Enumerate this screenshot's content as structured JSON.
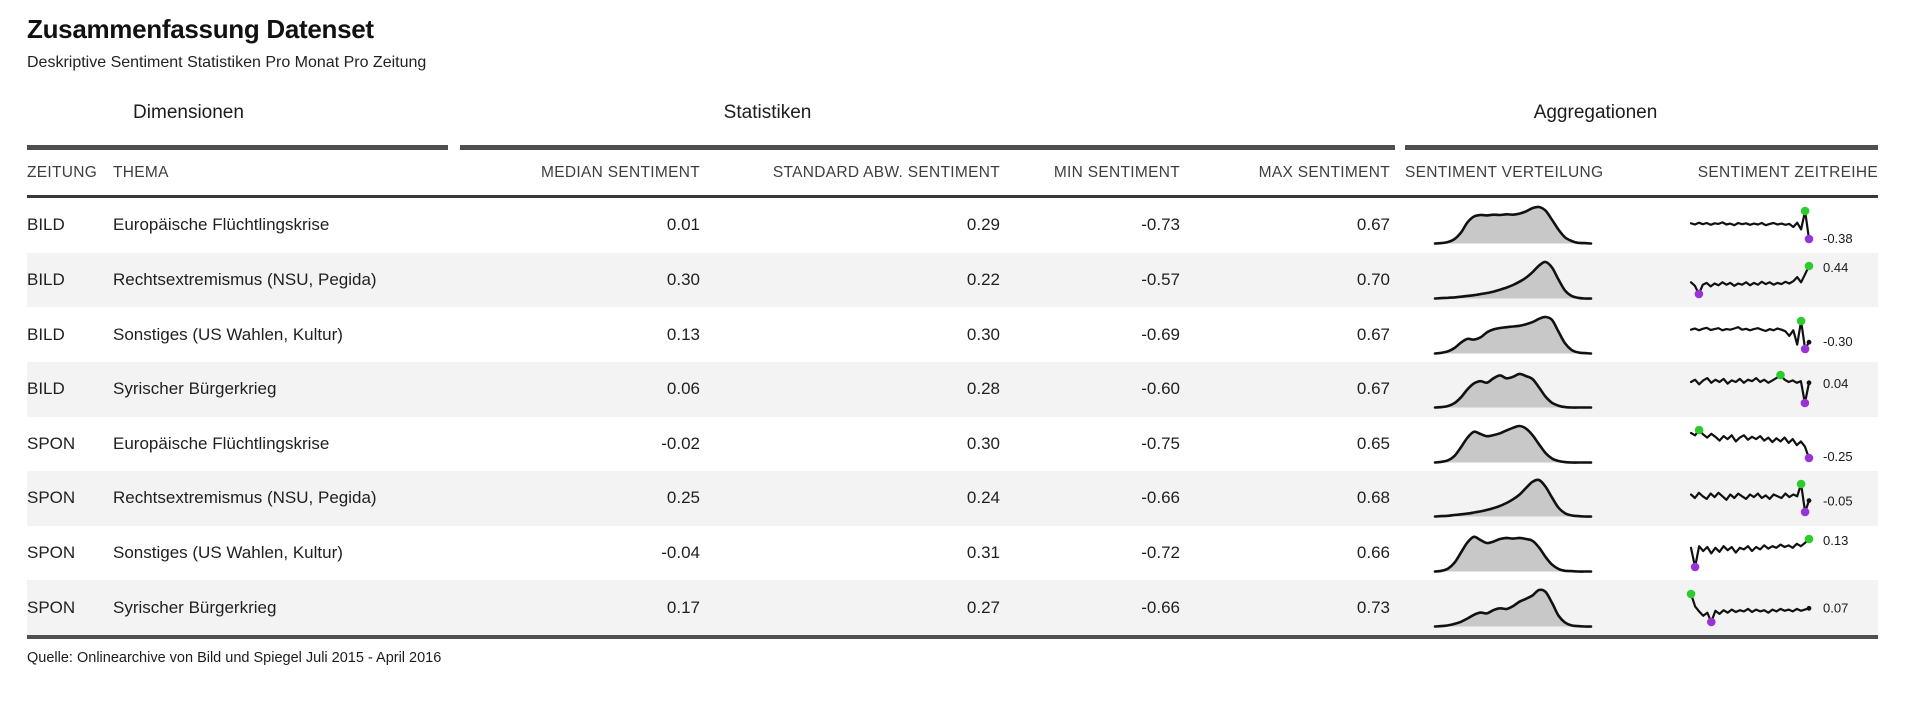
{
  "title": "Zusammenfassung Datenset",
  "subtitle": "Deskriptive Sentiment Statistiken Pro Monat Pro Zeitung",
  "source": "Quelle: Onlinearchive von Bild und Spiegel Juli 2015 - April 2016",
  "colors": {
    "stripe": "#f3f3f3",
    "heavy_rule": "#4f4f4f",
    "header_rule": "#383838",
    "density_fill": "#c8c8c8",
    "line": "#111111",
    "dot_max": "#2bcc2b",
    "dot_min": "#9a33d6"
  },
  "chart_data": {
    "type": "table",
    "column_groups": [
      "Dimensionen",
      "Statistiken",
      "Aggregationen"
    ],
    "columns": {
      "zeitung": "ZEITUNG",
      "thema": "THEMA",
      "median": "MEDIAN SENTIMENT",
      "std": "STANDARD ABW. SENTIMENT",
      "min": "MIN SENTIMENT",
      "max": "MAX SENTIMENT",
      "verteilung": "SENTIMENT VERTEILUNG",
      "zeitreihe": "SENTIMENT ZEITREIHE"
    },
    "rows": [
      {
        "zeitung": "BILD",
        "thema": "Europäische Flüchtlingskrise",
        "median_sentiment": "0.01",
        "std_abw_sentiment": "0.29",
        "min_sentiment": "-0.73",
        "max_sentiment": "0.67",
        "verteilung_density": [
          0,
          0.01,
          0.04,
          0.12,
          0.3,
          0.58,
          0.74,
          0.78,
          0.77,
          0.79,
          0.78,
          0.8,
          0.79,
          0.82,
          0.88,
          0.97,
          1.0,
          0.9,
          0.65,
          0.38,
          0.17,
          0.07,
          0.02,
          0.01,
          0
        ],
        "zeitreihe": [
          0.14,
          0.1,
          0.16,
          0.11,
          0.15,
          0.09,
          0.14,
          0.12,
          0.17,
          0.1,
          0.13,
          0.08,
          0.15,
          0.11,
          0.14,
          0.09,
          0.13,
          0.1,
          0.15,
          0.08,
          0.12,
          0.15,
          0.1,
          0.13,
          0.09,
          0.12,
          0.02,
          0.16,
          -0.06,
          0.55,
          -0.38
        ],
        "zeitreihe_last_label": "-0.38"
      },
      {
        "zeitung": "BILD",
        "thema": "Rechtsextremismus (NSU, Pegida)",
        "median_sentiment": "0.30",
        "std_abw_sentiment": "0.22",
        "min_sentiment": "-0.57",
        "max_sentiment": "0.70",
        "verteilung_density": [
          0,
          0.01,
          0.02,
          0.03,
          0.05,
          0.07,
          0.09,
          0.12,
          0.15,
          0.19,
          0.24,
          0.3,
          0.37,
          0.46,
          0.57,
          0.72,
          0.9,
          1.0,
          0.85,
          0.52,
          0.22,
          0.07,
          0.02,
          0,
          0
        ],
        "zeitreihe": [
          0.16,
          0.1,
          -0.04,
          0.12,
          0.15,
          0.09,
          0.14,
          0.11,
          0.16,
          0.12,
          0.15,
          0.1,
          0.14,
          0.12,
          0.16,
          0.11,
          0.15,
          0.12,
          0.17,
          0.13,
          0.16,
          0.12,
          0.15,
          0.13,
          0.17,
          0.14,
          0.18,
          0.25,
          0.16,
          0.3,
          0.44
        ],
        "zeitreihe_last_label": "0.44"
      },
      {
        "zeitung": "BILD",
        "thema": "Sonstiges (US Wahlen, Kultur)",
        "median_sentiment": "0.13",
        "std_abw_sentiment": "0.30",
        "min_sentiment": "-0.69",
        "max_sentiment": "0.67",
        "verteilung_density": [
          0,
          0.02,
          0.06,
          0.15,
          0.3,
          0.4,
          0.38,
          0.44,
          0.58,
          0.66,
          0.7,
          0.72,
          0.74,
          0.76,
          0.8,
          0.86,
          0.95,
          1.0,
          0.92,
          0.6,
          0.28,
          0.1,
          0.03,
          0.01,
          0
        ],
        "zeitreihe": [
          0.1,
          0.14,
          0.08,
          0.13,
          0.16,
          0.09,
          0.12,
          0.15,
          0.08,
          0.12,
          0.1,
          0.14,
          0.18,
          0.1,
          0.13,
          0.08,
          0.12,
          0.15,
          0.1,
          0.06,
          0.12,
          0.08,
          0.14,
          0.1,
          0.05,
          -0.1,
          0.08,
          -0.38,
          0.38,
          -0.52,
          -0.3
        ],
        "zeitreihe_last_label": "-0.30"
      },
      {
        "zeitung": "BILD",
        "thema": "Syrischer Bürgerkrieg",
        "median_sentiment": "0.06",
        "std_abw_sentiment": "0.28",
        "min_sentiment": "-0.60",
        "max_sentiment": "0.67",
        "verteilung_density": [
          0,
          0.01,
          0.04,
          0.12,
          0.28,
          0.5,
          0.66,
          0.72,
          0.68,
          0.8,
          0.88,
          0.8,
          0.84,
          0.92,
          0.86,
          0.78,
          0.55,
          0.3,
          0.13,
          0.05,
          0.01,
          0,
          0,
          0,
          0
        ],
        "zeitreihe": [
          0.05,
          0.08,
          0.02,
          0.07,
          0.1,
          0.04,
          0.08,
          0.05,
          0.09,
          0.03,
          0.07,
          0.05,
          0.09,
          0.04,
          0.08,
          0.06,
          0.1,
          0.05,
          0.08,
          0.04,
          0.07,
          0.1,
          0.14,
          0.08,
          0.05,
          0.07,
          0.04,
          0.06,
          -0.22,
          0.04
        ],
        "zeitreihe_last_label": "0.04"
      },
      {
        "zeitung": "SPON",
        "thema": "Europäische Flüchtlingskrise",
        "median_sentiment": "-0.02",
        "std_abw_sentiment": "0.30",
        "min_sentiment": "-0.75",
        "max_sentiment": "0.65",
        "verteilung_density": [
          0,
          0.02,
          0.06,
          0.18,
          0.42,
          0.68,
          0.84,
          0.78,
          0.72,
          0.75,
          0.8,
          0.88,
          0.95,
          1.0,
          0.93,
          0.75,
          0.5,
          0.26,
          0.11,
          0.04,
          0.01,
          0,
          0,
          0,
          0
        ],
        "zeitreihe": [
          0.08,
          0.05,
          0.12,
          0.06,
          0.02,
          0.07,
          0.03,
          -0.02,
          0.04,
          0.0,
          0.05,
          -0.03,
          0.02,
          0.05,
          -0.01,
          0.03,
          0.0,
          0.04,
          -0.02,
          0.02,
          -0.04,
          0.01,
          -0.03,
          0.02,
          -0.05,
          0.0,
          -0.08,
          -0.03,
          -0.1,
          -0.25
        ],
        "zeitreihe_last_label": "-0.25"
      },
      {
        "zeitung": "SPON",
        "thema": "Rechtsextremismus (NSU, Pegida)",
        "median_sentiment": "0.25",
        "std_abw_sentiment": "0.24",
        "min_sentiment": "-0.66",
        "max_sentiment": "0.68",
        "verteilung_density": [
          0,
          0.01,
          0.02,
          0.04,
          0.06,
          0.08,
          0.11,
          0.14,
          0.18,
          0.23,
          0.29,
          0.37,
          0.47,
          0.6,
          0.78,
          0.95,
          1.0,
          0.82,
          0.52,
          0.24,
          0.09,
          0.03,
          0.01,
          0,
          0
        ],
        "zeitreihe": [
          0.02,
          -0.02,
          0.04,
          0.0,
          -0.03,
          0.03,
          -0.01,
          0.04,
          0.0,
          -0.04,
          0.02,
          -0.02,
          0.03,
          0.0,
          -0.03,
          0.02,
          -0.01,
          0.03,
          -0.02,
          0.01,
          -0.03,
          0.02,
          0.0,
          -0.02,
          0.03,
          -0.01,
          0.02,
          0.0,
          0.14,
          -0.18,
          -0.05
        ],
        "zeitreihe_last_label": "-0.05"
      },
      {
        "zeitung": "SPON",
        "thema": "Sonstiges (US Wahlen, Kultur)",
        "median_sentiment": "-0.04",
        "std_abw_sentiment": "0.31",
        "min_sentiment": "-0.72",
        "max_sentiment": "0.66",
        "verteilung_density": [
          0,
          0.02,
          0.08,
          0.24,
          0.52,
          0.8,
          0.95,
          0.86,
          0.78,
          0.82,
          0.89,
          0.92,
          0.9,
          0.92,
          0.89,
          0.84,
          0.66,
          0.4,
          0.19,
          0.07,
          0.02,
          0.01,
          0,
          0,
          0
        ],
        "zeitreihe": [
          0.02,
          -0.22,
          0.04,
          -0.02,
          0.03,
          -0.05,
          0.02,
          -0.03,
          0.04,
          -0.01,
          0.03,
          -0.04,
          0.02,
          0.0,
          0.04,
          -0.02,
          0.03,
          0.0,
          0.05,
          0.01,
          0.04,
          0.02,
          0.06,
          0.03,
          0.05,
          0.02,
          0.07,
          0.04,
          0.08,
          0.13
        ],
        "zeitreihe_last_label": "0.13"
      },
      {
        "zeitung": "SPON",
        "thema": "Syrischer Bürgerkrieg",
        "median_sentiment": "0.17",
        "std_abw_sentiment": "0.27",
        "min_sentiment": "-0.66",
        "max_sentiment": "0.73",
        "verteilung_density": [
          0,
          0.01,
          0.03,
          0.07,
          0.13,
          0.22,
          0.32,
          0.38,
          0.36,
          0.45,
          0.5,
          0.48,
          0.56,
          0.68,
          0.76,
          0.85,
          1.0,
          0.95,
          0.65,
          0.3,
          0.11,
          0.03,
          0.01,
          0,
          0
        ],
        "zeitreihe": [
          0.3,
          0.1,
          0.02,
          -0.05,
          0.0,
          -0.15,
          0.03,
          -0.02,
          0.04,
          0.0,
          0.05,
          0.01,
          0.04,
          0.02,
          0.06,
          0.01,
          0.05,
          0.02,
          0.04,
          0.0,
          0.05,
          0.02,
          0.06,
          0.03,
          0.05,
          0.02,
          0.06,
          0.03,
          0.05,
          0.07
        ],
        "zeitreihe_last_label": "0.07"
      }
    ]
  }
}
